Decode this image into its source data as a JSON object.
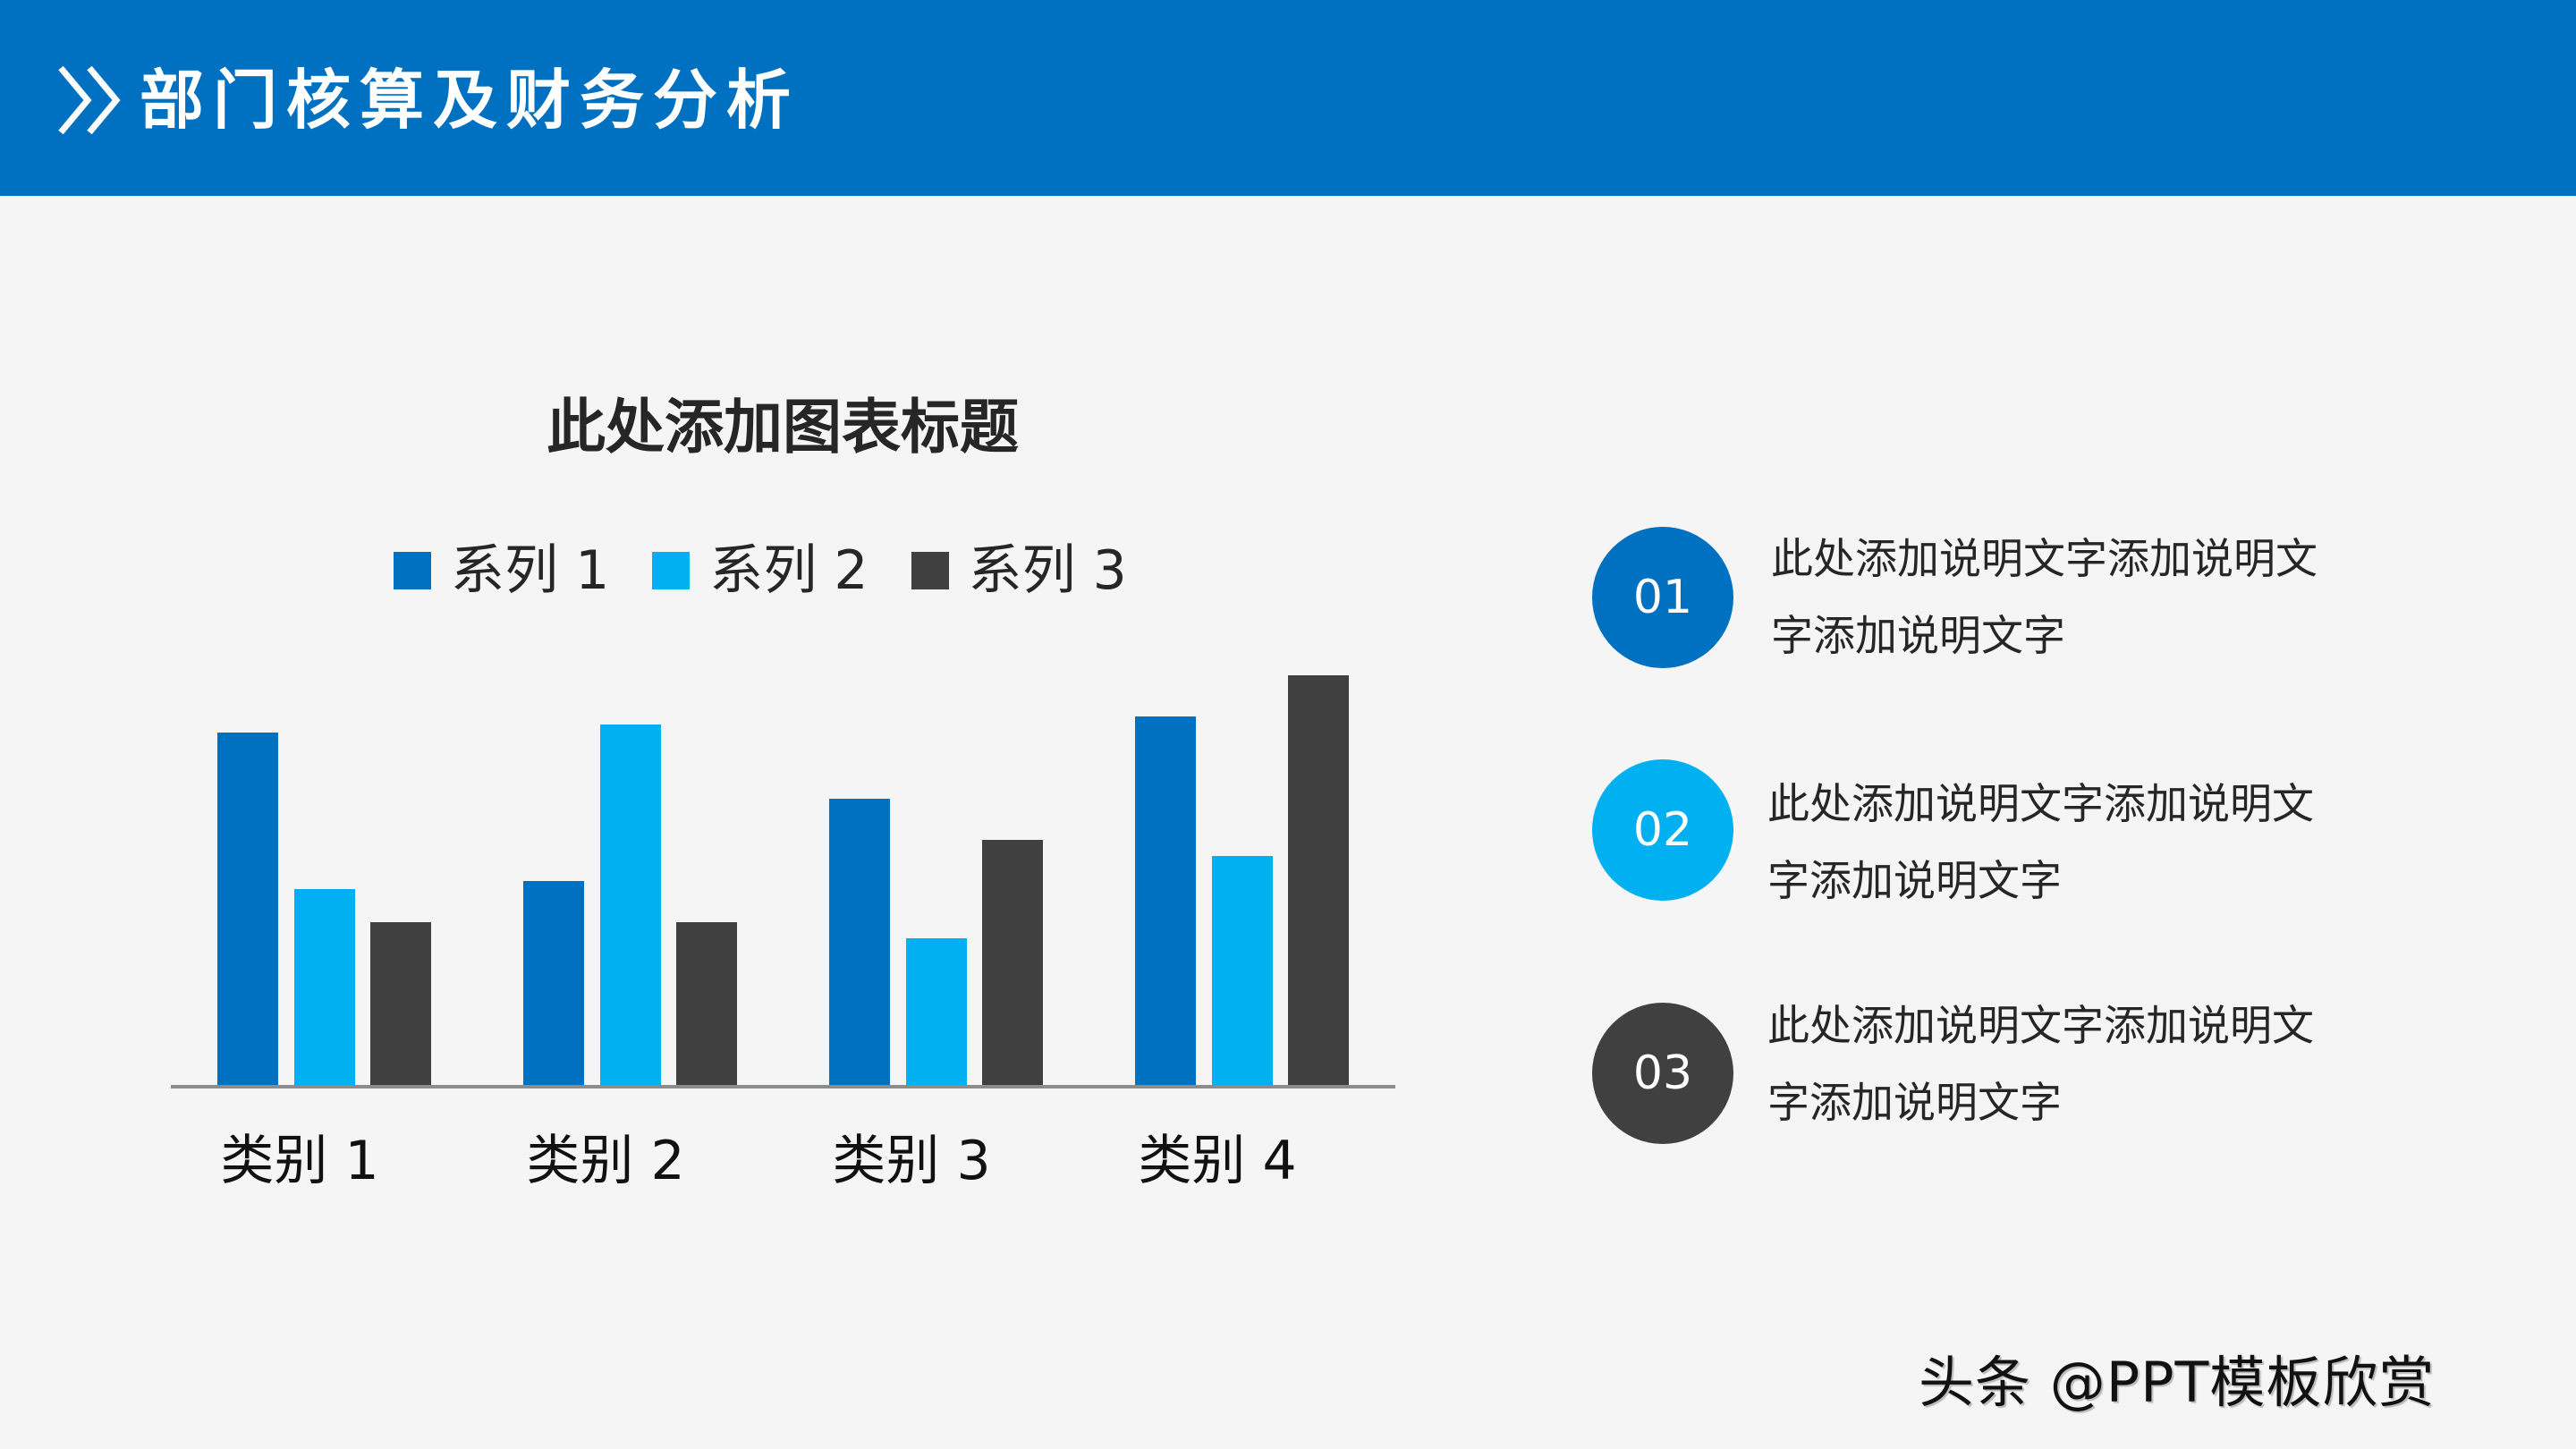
{
  "header": {
    "title": "部门核算及财务分析",
    "background_color": "#0070C0",
    "icon": "double-chevron-right-icon"
  },
  "chart_data": {
    "type": "bar",
    "title": "此处添加图表标题",
    "categories": [
      "类别 1",
      "类别 2",
      "类别 3",
      "类别 4"
    ],
    "series": [
      {
        "name": "系列 1",
        "color": "#0070C0",
        "values": [
          4.3,
          2.5,
          3.5,
          4.5
        ]
      },
      {
        "name": "系列 2",
        "color": "#00B0F0",
        "values": [
          2.4,
          4.4,
          1.8,
          2.8
        ]
      },
      {
        "name": "系列 3",
        "color": "#404040",
        "values": [
          2,
          2,
          3,
          5
        ]
      }
    ],
    "xlabel": "",
    "ylabel": "",
    "ylim": [
      0,
      5.6
    ],
    "grid": false,
    "legend_position": "top"
  },
  "legend": [
    {
      "label": "系列 1",
      "color": "#0070C0"
    },
    {
      "label": "系列 2",
      "color": "#00B0F0"
    },
    {
      "label": "系列 3",
      "color": "#404040"
    }
  ],
  "items": [
    {
      "number": "01",
      "color": "#0070C0",
      "line1": "此处添加说明文字添加说明文",
      "line2": "字添加说明文字"
    },
    {
      "number": "02",
      "color": "#00B0F0",
      "line1": "此处添加说明文字添加说明文",
      "line2": "字添加说明文字"
    },
    {
      "number": "03",
      "color": "#404040",
      "line1": "此处添加说明文字添加说明文",
      "line2": "字添加说明文字"
    }
  ],
  "watermark": "头条 @PPT模板欣赏"
}
